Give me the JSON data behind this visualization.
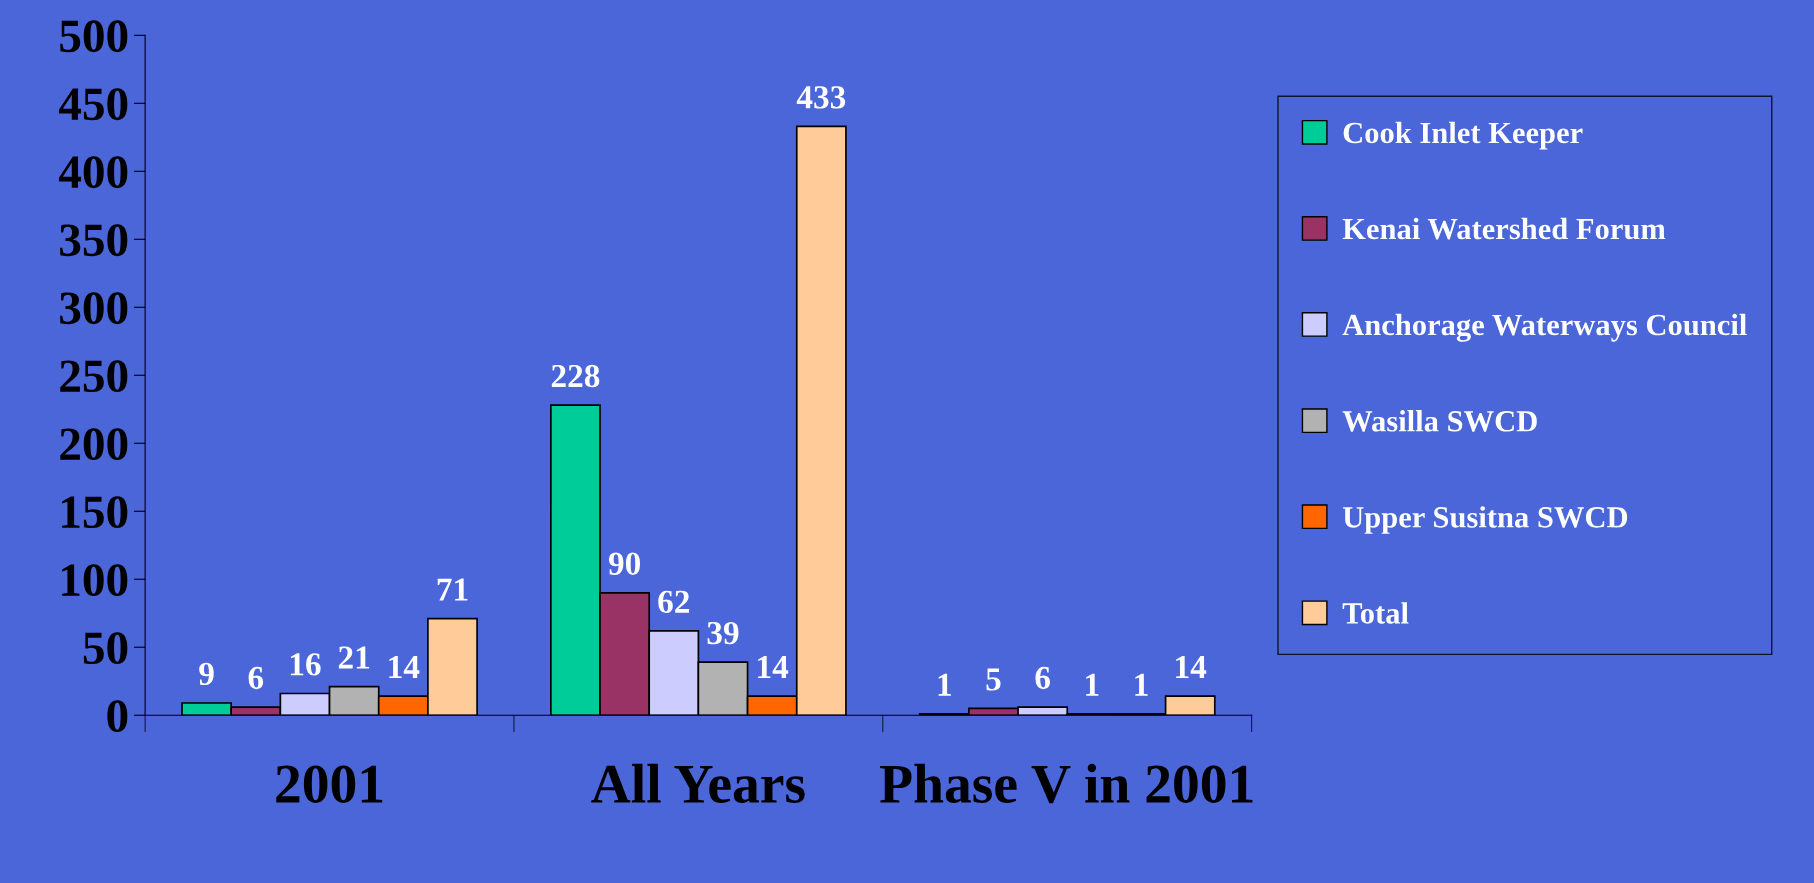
{
  "chart_data": {
    "type": "bar",
    "categories": [
      "2001",
      "All Years",
      "Phase V in 2001"
    ],
    "series": [
      {
        "name": "Cook Inlet Keeper",
        "color": "#00cc99",
        "values": [
          9,
          228,
          1
        ]
      },
      {
        "name": "Kenai Watershed Forum",
        "color": "#993366",
        "values": [
          6,
          90,
          5
        ]
      },
      {
        "name": "Anchorage Waterways Council",
        "color": "#ccccff",
        "values": [
          16,
          62,
          6
        ]
      },
      {
        "name": "Wasilla SWCD",
        "color": "#b2b2b2",
        "values": [
          21,
          39,
          1
        ]
      },
      {
        "name": "Upper Susitna SWCD",
        "color": "#ff6600",
        "values": [
          14,
          14,
          1
        ]
      },
      {
        "name": "Total",
        "color": "#ffcc99",
        "values": [
          71,
          433,
          14
        ]
      }
    ],
    "ylim": [
      0,
      500
    ],
    "yticks": [
      0,
      50,
      100,
      150,
      200,
      250,
      300,
      350,
      400,
      450,
      500
    ],
    "data_labels": true,
    "grid": false,
    "legend": "right"
  }
}
